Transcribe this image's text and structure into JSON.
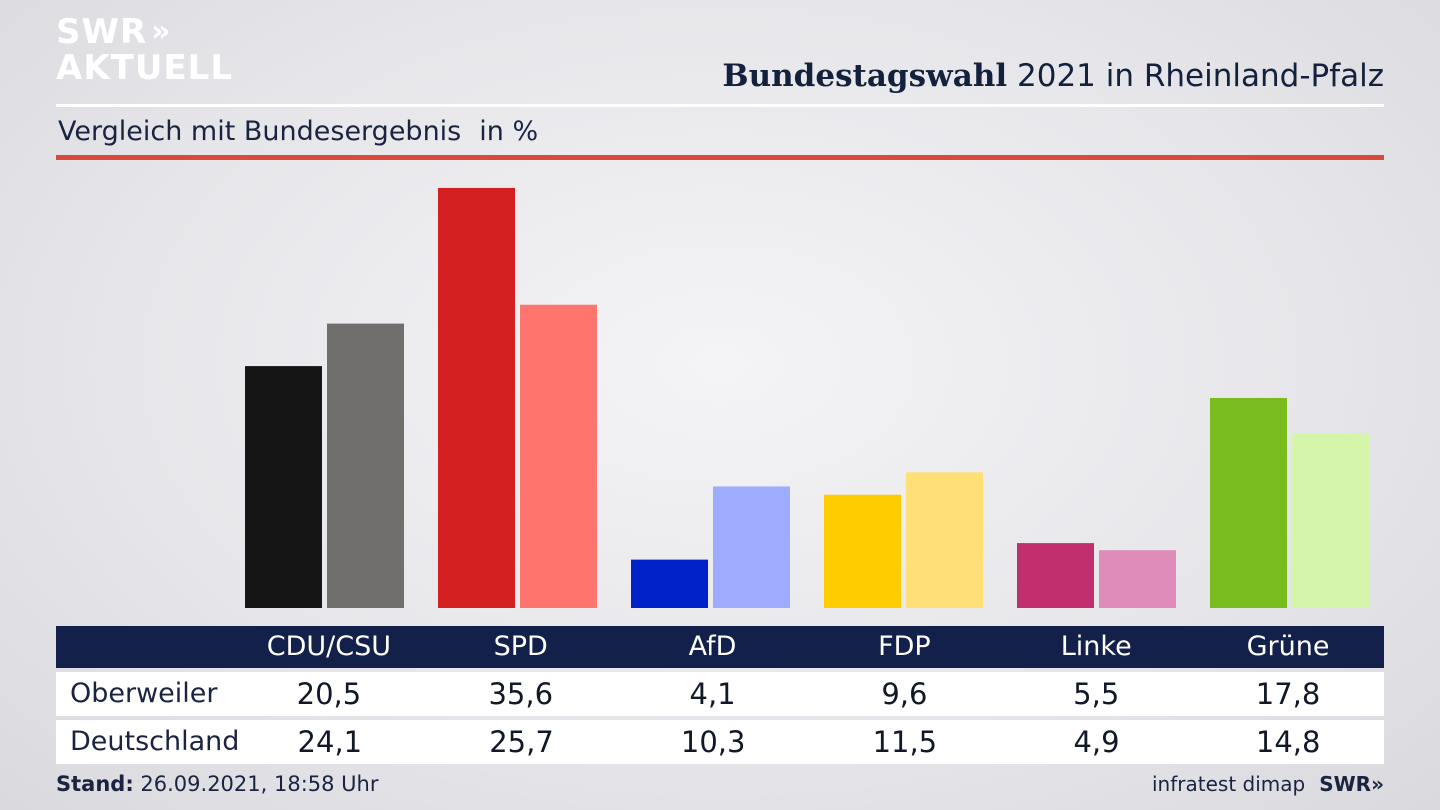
{
  "logo": {
    "line1": "SWR",
    "chevrons": "»",
    "line2": "AKTUELL"
  },
  "header": {
    "title_bold": "Bundestagswahl",
    "title_rest": " 2021 in Rheinland-Pfalz"
  },
  "subtitle": {
    "text": "Vergleich mit Bundesergebnis",
    "unit": "in %"
  },
  "footer": {
    "stand_label": "Stand:",
    "stand_value": " 26.09.2021, 18:58 Uhr",
    "source": "infratest dimap",
    "brand": "SWR»"
  },
  "table": {
    "headers": [
      "CDU/CSU",
      "SPD",
      "AfD",
      "FDP",
      "Linke",
      "Grüne"
    ],
    "rows": [
      {
        "label": "Oberweiler",
        "values": [
          "20,5",
          "35,6",
          "4,1",
          "9,6",
          "5,5",
          "17,8"
        ]
      },
      {
        "label": "Deutschland",
        "values": [
          "24,1",
          "25,7",
          "10,3",
          "11,5",
          "4,9",
          "14,8"
        ]
      }
    ]
  },
  "chart_data": {
    "type": "bar",
    "categories": [
      "CDU/CSU",
      "SPD",
      "AfD",
      "FDP",
      "Linke",
      "Grüne"
    ],
    "series": [
      {
        "name": "Oberweiler",
        "values": [
          20.5,
          35.6,
          4.1,
          9.6,
          5.5,
          17.8
        ],
        "colors": [
          "#151515",
          "#d42020",
          "#0022c8",
          "#ffcc00",
          "#c0306e",
          "#78bc1e"
        ]
      },
      {
        "name": "Deutschland",
        "values": [
          24.1,
          25.7,
          10.3,
          11.5,
          4.9,
          14.8
        ],
        "colors": [
          "#706f6e",
          "#ff756e",
          "#9eacff",
          "#ffe078",
          "#e08cba",
          "#d5f5aa"
        ]
      }
    ],
    "grid": false,
    "legend": "table below"
  }
}
